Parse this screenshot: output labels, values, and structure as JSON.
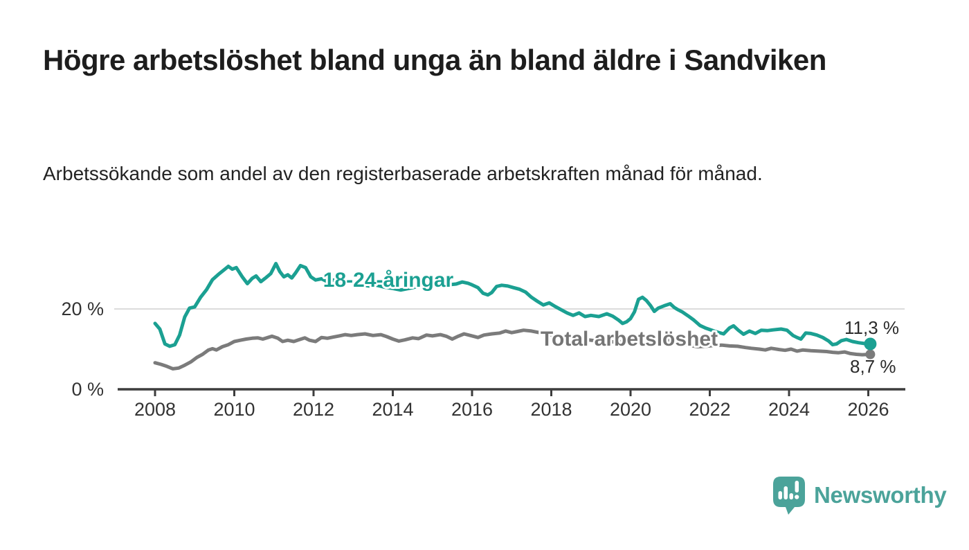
{
  "header": {
    "title": "Högre arbetslöshet bland unga än bland äldre i Sandviken",
    "subtitle": "Arbetssökande som andel av den registerbaserade arbetskraften månad för månad."
  },
  "chart_data": {
    "type": "line",
    "unit": "%",
    "title": "Högre arbetslöshet bland unga än bland äldre i Sandviken",
    "xlabel": "",
    "ylabel": "Arbetssökande som andel av den registerbaserade arbetskraften",
    "xlim": [
      2007.05,
      2026.95
    ],
    "ylim": [
      0,
      33
    ],
    "grid": "single-horizontal-gridline-at-20",
    "legend_position": "inline-on-lines",
    "x_ticks": [
      2008,
      2010,
      2012,
      2014,
      2016,
      2018,
      2020,
      2022,
      2024,
      2026
    ],
    "y_ticks": [
      {
        "value": 20,
        "label": "20 %"
      },
      {
        "value": 0,
        "label": "0 %"
      }
    ],
    "series": [
      {
        "name": "18-24-åringar",
        "label": "18-24-åringar",
        "color": "#1ba092",
        "end_label": "11,3 %",
        "end_value": 11.3,
        "points": [
          [
            2008.0,
            16.4
          ],
          [
            2008.12,
            15.0
          ],
          [
            2008.25,
            11.3
          ],
          [
            2008.37,
            10.7
          ],
          [
            2008.5,
            11.1
          ],
          [
            2008.62,
            13.5
          ],
          [
            2008.75,
            18.0
          ],
          [
            2008.87,
            20.2
          ],
          [
            2009.0,
            20.5
          ],
          [
            2009.15,
            22.9
          ],
          [
            2009.3,
            24.8
          ],
          [
            2009.45,
            27.3
          ],
          [
            2009.6,
            28.6
          ],
          [
            2009.75,
            29.8
          ],
          [
            2009.85,
            30.6
          ],
          [
            2009.95,
            29.9
          ],
          [
            2010.05,
            30.3
          ],
          [
            2010.2,
            28.0
          ],
          [
            2010.33,
            26.3
          ],
          [
            2010.45,
            27.6
          ],
          [
            2010.55,
            28.2
          ],
          [
            2010.67,
            26.8
          ],
          [
            2010.8,
            27.8
          ],
          [
            2010.92,
            28.8
          ],
          [
            2011.05,
            31.3
          ],
          [
            2011.15,
            29.3
          ],
          [
            2011.25,
            28.0
          ],
          [
            2011.35,
            28.5
          ],
          [
            2011.45,
            27.7
          ],
          [
            2011.55,
            29.0
          ],
          [
            2011.67,
            30.8
          ],
          [
            2011.8,
            30.3
          ],
          [
            2011.93,
            28.0
          ],
          [
            2012.05,
            27.2
          ],
          [
            2012.2,
            27.5
          ],
          [
            2012.35,
            26.8
          ],
          [
            2012.5,
            27.2
          ],
          [
            2012.65,
            26.6
          ],
          [
            2012.8,
            26.9
          ],
          [
            2013.0,
            26.5
          ],
          [
            2013.2,
            26.0
          ],
          [
            2013.4,
            25.7
          ],
          [
            2013.6,
            25.9
          ],
          [
            2013.8,
            25.4
          ],
          [
            2014.0,
            25.1
          ],
          [
            2014.2,
            24.7
          ],
          [
            2014.4,
            25.1
          ],
          [
            2014.6,
            25.5
          ],
          [
            2014.8,
            25.8
          ],
          [
            2015.0,
            25.9
          ],
          [
            2015.2,
            25.7
          ],
          [
            2015.4,
            26.0
          ],
          [
            2015.6,
            26.2
          ],
          [
            2015.75,
            26.7
          ],
          [
            2015.9,
            26.4
          ],
          [
            2016.0,
            26.0
          ],
          [
            2016.15,
            25.3
          ],
          [
            2016.28,
            23.9
          ],
          [
            2016.4,
            23.5
          ],
          [
            2016.5,
            24.1
          ],
          [
            2016.62,
            25.6
          ],
          [
            2016.75,
            25.9
          ],
          [
            2016.9,
            25.7
          ],
          [
            2017.05,
            25.3
          ],
          [
            2017.2,
            24.9
          ],
          [
            2017.35,
            24.2
          ],
          [
            2017.5,
            22.9
          ],
          [
            2017.65,
            21.9
          ],
          [
            2017.8,
            21.0
          ],
          [
            2017.95,
            21.5
          ],
          [
            2018.1,
            20.6
          ],
          [
            2018.25,
            19.8
          ],
          [
            2018.4,
            19.0
          ],
          [
            2018.55,
            18.4
          ],
          [
            2018.7,
            19.0
          ],
          [
            2018.85,
            18.1
          ],
          [
            2019.0,
            18.4
          ],
          [
            2019.2,
            18.1
          ],
          [
            2019.4,
            18.8
          ],
          [
            2019.55,
            18.2
          ],
          [
            2019.7,
            17.2
          ],
          [
            2019.8,
            16.4
          ],
          [
            2019.9,
            16.8
          ],
          [
            2020.0,
            17.6
          ],
          [
            2020.1,
            19.3
          ],
          [
            2020.2,
            22.4
          ],
          [
            2020.3,
            22.9
          ],
          [
            2020.4,
            22.1
          ],
          [
            2020.5,
            20.9
          ],
          [
            2020.6,
            19.4
          ],
          [
            2020.7,
            20.2
          ],
          [
            2020.85,
            20.8
          ],
          [
            2021.0,
            21.3
          ],
          [
            2021.1,
            20.4
          ],
          [
            2021.2,
            19.8
          ],
          [
            2021.3,
            19.3
          ],
          [
            2021.45,
            18.3
          ],
          [
            2021.6,
            17.2
          ],
          [
            2021.75,
            15.9
          ],
          [
            2021.9,
            15.2
          ],
          [
            2022.05,
            14.7
          ],
          [
            2022.2,
            14.2
          ],
          [
            2022.35,
            13.8
          ],
          [
            2022.5,
            15.3
          ],
          [
            2022.6,
            15.8
          ],
          [
            2022.72,
            14.7
          ],
          [
            2022.85,
            13.7
          ],
          [
            2023.0,
            14.5
          ],
          [
            2023.15,
            13.9
          ],
          [
            2023.3,
            14.7
          ],
          [
            2023.45,
            14.6
          ],
          [
            2023.6,
            14.8
          ],
          [
            2023.8,
            15.0
          ],
          [
            2023.95,
            14.7
          ],
          [
            2024.1,
            13.4
          ],
          [
            2024.2,
            12.9
          ],
          [
            2024.3,
            12.5
          ],
          [
            2024.42,
            14.0
          ],
          [
            2024.55,
            13.9
          ],
          [
            2024.7,
            13.5
          ],
          [
            2024.85,
            12.9
          ],
          [
            2025.0,
            12.0
          ],
          [
            2025.1,
            11.1
          ],
          [
            2025.2,
            11.3
          ],
          [
            2025.32,
            12.1
          ],
          [
            2025.45,
            12.4
          ],
          [
            2025.6,
            11.9
          ],
          [
            2025.75,
            11.6
          ],
          [
            2025.9,
            11.4
          ],
          [
            2026.05,
            11.3
          ]
        ]
      },
      {
        "name": "Total arbetslöshet",
        "label": "Total arbetslöshet",
        "color": "#7b7b7b",
        "end_label": "8,7 %",
        "end_value": 8.7,
        "points": [
          [
            2008.0,
            6.6
          ],
          [
            2008.15,
            6.2
          ],
          [
            2008.3,
            5.7
          ],
          [
            2008.45,
            5.1
          ],
          [
            2008.6,
            5.3
          ],
          [
            2008.75,
            6.0
          ],
          [
            2008.9,
            6.8
          ],
          [
            2009.05,
            7.9
          ],
          [
            2009.2,
            8.7
          ],
          [
            2009.35,
            9.8
          ],
          [
            2009.45,
            10.1
          ],
          [
            2009.55,
            9.8
          ],
          [
            2009.7,
            10.6
          ],
          [
            2009.85,
            11.1
          ],
          [
            2010.0,
            11.9
          ],
          [
            2010.15,
            12.2
          ],
          [
            2010.3,
            12.5
          ],
          [
            2010.45,
            12.7
          ],
          [
            2010.6,
            12.8
          ],
          [
            2010.72,
            12.5
          ],
          [
            2010.85,
            12.9
          ],
          [
            2010.95,
            13.2
          ],
          [
            2011.1,
            12.7
          ],
          [
            2011.22,
            11.9
          ],
          [
            2011.35,
            12.2
          ],
          [
            2011.5,
            11.9
          ],
          [
            2011.65,
            12.4
          ],
          [
            2011.78,
            12.8
          ],
          [
            2011.9,
            12.2
          ],
          [
            2012.05,
            11.9
          ],
          [
            2012.2,
            12.9
          ],
          [
            2012.35,
            12.7
          ],
          [
            2012.5,
            13.0
          ],
          [
            2012.65,
            13.3
          ],
          [
            2012.8,
            13.6
          ],
          [
            2012.95,
            13.4
          ],
          [
            2013.1,
            13.6
          ],
          [
            2013.3,
            13.8
          ],
          [
            2013.5,
            13.4
          ],
          [
            2013.7,
            13.6
          ],
          [
            2013.85,
            13.1
          ],
          [
            2014.0,
            12.5
          ],
          [
            2014.15,
            12.0
          ],
          [
            2014.3,
            12.3
          ],
          [
            2014.5,
            12.8
          ],
          [
            2014.65,
            12.6
          ],
          [
            2014.85,
            13.5
          ],
          [
            2015.0,
            13.3
          ],
          [
            2015.2,
            13.6
          ],
          [
            2015.35,
            13.2
          ],
          [
            2015.5,
            12.5
          ],
          [
            2015.65,
            13.2
          ],
          [
            2015.8,
            13.8
          ],
          [
            2016.0,
            13.3
          ],
          [
            2016.15,
            12.9
          ],
          [
            2016.3,
            13.5
          ],
          [
            2016.5,
            13.8
          ],
          [
            2016.7,
            14.0
          ],
          [
            2016.85,
            14.5
          ],
          [
            2017.0,
            14.1
          ],
          [
            2017.15,
            14.4
          ],
          [
            2017.3,
            14.7
          ],
          [
            2017.5,
            14.5
          ],
          [
            2017.7,
            14.1
          ],
          [
            2017.9,
            13.7
          ],
          [
            2018.1,
            13.4
          ],
          [
            2018.35,
            13.1
          ],
          [
            2018.6,
            12.8
          ],
          [
            2018.85,
            12.4
          ],
          [
            2019.1,
            12.1
          ],
          [
            2019.35,
            11.9
          ],
          [
            2019.6,
            11.8
          ],
          [
            2019.85,
            11.9
          ],
          [
            2020.1,
            12.3
          ],
          [
            2020.3,
            12.9
          ],
          [
            2020.5,
            13.0
          ],
          [
            2020.7,
            12.8
          ],
          [
            2020.9,
            12.5
          ],
          [
            2021.1,
            11.9
          ],
          [
            2021.3,
            11.3
          ],
          [
            2021.5,
            10.9
          ],
          [
            2021.7,
            10.6
          ],
          [
            2021.9,
            10.7
          ],
          [
            2022.1,
            10.9
          ],
          [
            2022.3,
            11.0
          ],
          [
            2022.5,
            10.8
          ],
          [
            2022.7,
            10.7
          ],
          [
            2022.9,
            10.4
          ],
          [
            2023.05,
            10.2
          ],
          [
            2023.25,
            10.0
          ],
          [
            2023.4,
            9.8
          ],
          [
            2023.55,
            10.2
          ],
          [
            2023.75,
            9.9
          ],
          [
            2023.9,
            9.7
          ],
          [
            2024.05,
            10.0
          ],
          [
            2024.2,
            9.5
          ],
          [
            2024.35,
            9.8
          ],
          [
            2024.55,
            9.6
          ],
          [
            2024.75,
            9.5
          ],
          [
            2024.95,
            9.4
          ],
          [
            2025.1,
            9.2
          ],
          [
            2025.25,
            9.1
          ],
          [
            2025.4,
            9.3
          ],
          [
            2025.55,
            8.9
          ],
          [
            2025.7,
            8.7
          ],
          [
            2025.85,
            8.6
          ],
          [
            2026.05,
            8.7
          ]
        ]
      }
    ]
  },
  "branding": {
    "logo_text": "Newsworthy",
    "logo_color": "#4ba39a"
  },
  "colors": {
    "accent_teal": "#1ba092",
    "line_gray": "#7b7b7b",
    "label_gray": "#757575",
    "gridline": "#dcdcdc",
    "axis": "#3d3d3d",
    "tick_text": "#333333",
    "title_text": "#1d1d1d"
  }
}
